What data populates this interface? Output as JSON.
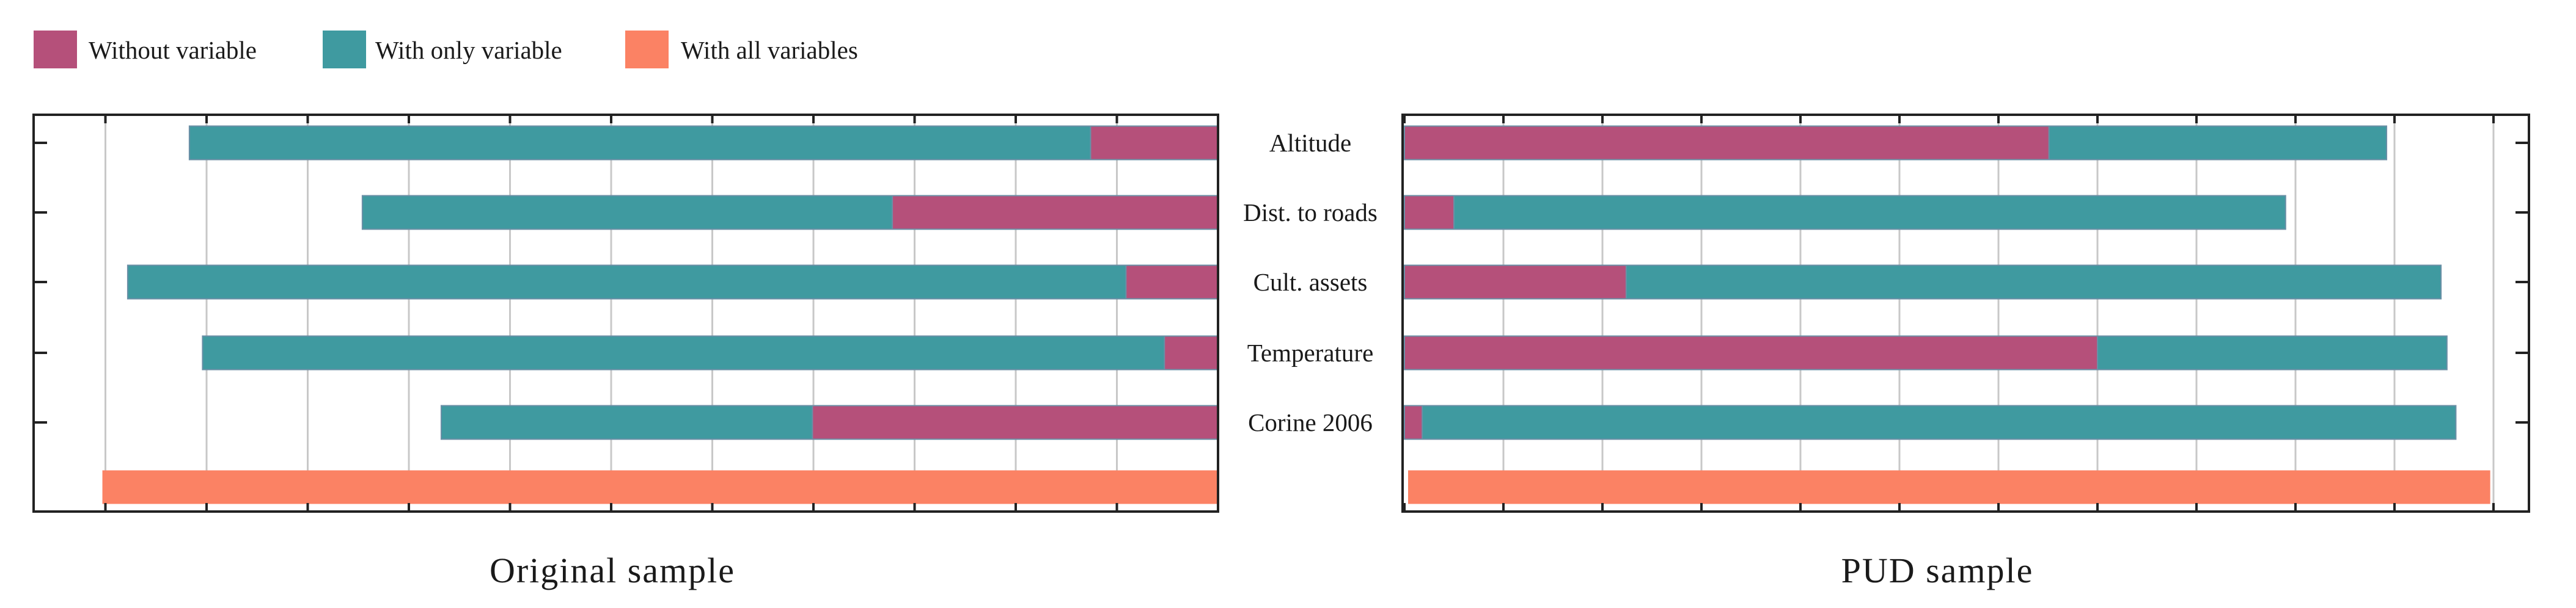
{
  "colors": {
    "without": "#b5507a",
    "only": "#3f9aa0",
    "all": "#fb8264",
    "grid": "#c8c8c8",
    "axis": "#222222"
  },
  "chart_data": {
    "type": "bar",
    "orientation": "horizontal",
    "legend": [
      {
        "key": "without",
        "label": "Without variable",
        "color": "#b5507a"
      },
      {
        "key": "only",
        "label": "With only variable",
        "color": "#3f9aa0"
      },
      {
        "key": "all",
        "label": "With all variables",
        "color": "#fb8264"
      }
    ],
    "categories": [
      "Altitude",
      "Dist. to roads",
      "Cult. assets",
      "Temperature",
      "Corine 2006"
    ],
    "panels": [
      {
        "title": "Original sample",
        "direction": "right-to-left",
        "xlim": [
          0,
          11.2
        ],
        "series": [
          {
            "key": "only",
            "name": "With only variable",
            "values": [
              10.17,
              8.46,
              10.78,
              10.04,
              7.68
            ]
          },
          {
            "key": "without",
            "name": "Without variable",
            "values": [
              1.26,
              3.22,
              0.91,
              0.53,
              4.01
            ]
          }
        ],
        "all_variables": 11.03
      },
      {
        "title": "PUD sample",
        "direction": "left-to-right",
        "xlim": [
          0,
          11.2
        ],
        "series": [
          {
            "key": "only",
            "name": "With only variable",
            "values": [
              9.92,
              8.9,
              10.47,
              10.53,
              10.62
            ]
          },
          {
            "key": "without",
            "name": "Without variable",
            "values": [
              6.51,
              0.5,
              2.24,
              7.0,
              0.18
            ]
          }
        ],
        "all_variables": 10.93
      }
    ]
  }
}
